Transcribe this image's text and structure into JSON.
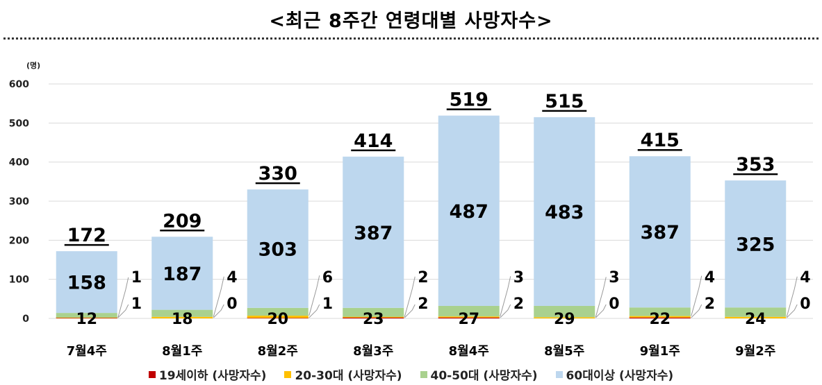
{
  "chart_data": {
    "type": "bar",
    "stacked": true,
    "title": "<최근 8주간 연령대별 사망자수>",
    "unit": "(명)",
    "categories": [
      "7월4주",
      "8월1주",
      "8월2주",
      "8월3주",
      "8월4주",
      "8월5주",
      "9월1주",
      "9월2주"
    ],
    "totals": [
      172,
      209,
      330,
      414,
      519,
      515,
      415,
      353
    ],
    "series": [
      {
        "name": "19세이하 (사망자수)",
        "color": "#c00000",
        "values": [
          1,
          0,
          1,
          2,
          2,
          0,
          2,
          0
        ]
      },
      {
        "name": "20-30대 (사망자수)",
        "color": "#ffc000",
        "values": [
          1,
          4,
          6,
          2,
          3,
          3,
          4,
          4
        ]
      },
      {
        "name": "40-50대 (사망자수)",
        "color": "#a9d18e",
        "values": [
          12,
          18,
          20,
          23,
          27,
          29,
          22,
          24
        ]
      },
      {
        "name": "60대이상 (사망자수)",
        "color": "#bdd7ee",
        "values": [
          158,
          187,
          303,
          387,
          487,
          483,
          387,
          325
        ]
      }
    ],
    "ylim": [
      0,
      600
    ],
    "yticks": [
      0,
      100,
      200,
      300,
      400,
      500,
      600
    ],
    "grid": true,
    "legend": "bottom"
  }
}
